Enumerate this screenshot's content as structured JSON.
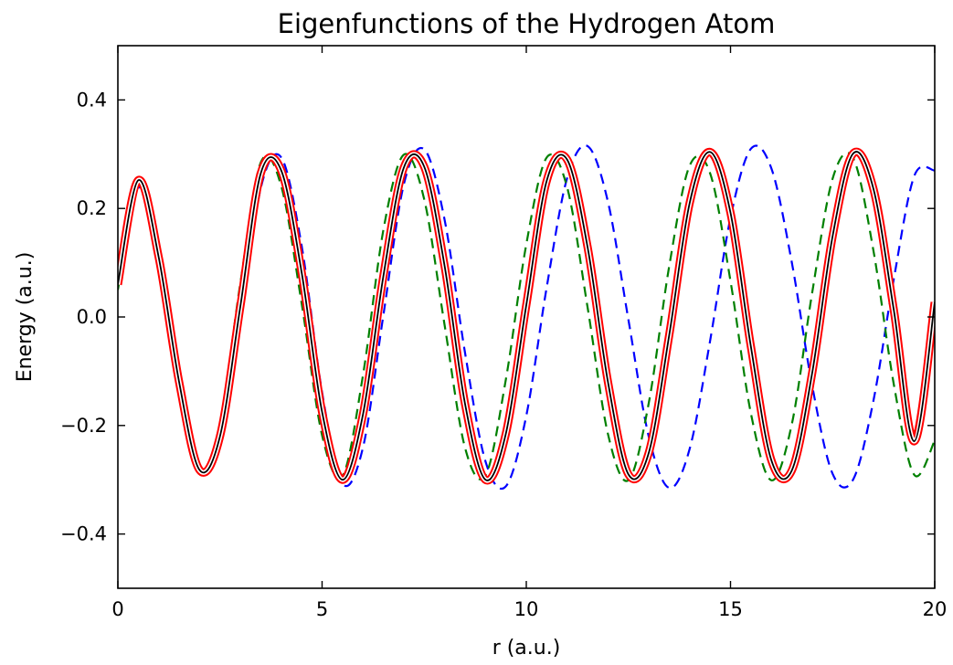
{
  "chart_data": {
    "type": "line",
    "title": "Eigenfunctions of the Hydrogen Atom",
    "xlabel": "r (a.u.)",
    "ylabel": "Energy (a.u.)",
    "xlim": [
      0,
      20
    ],
    "ylim": [
      -0.5,
      0.5
    ],
    "xticks": [
      0,
      5,
      10,
      15,
      20
    ],
    "xtick_labels": [
      "0",
      "5",
      "10",
      "15",
      "20"
    ],
    "yticks": [
      -0.4,
      -0.2,
      0.0,
      0.2,
      0.4
    ],
    "ytick_labels": [
      "−0.4",
      "−0.2",
      "0.0",
      "0.2",
      "0.4"
    ],
    "grid": false,
    "legend": "none",
    "series": [
      {
        "style": "dashed",
        "color": "#0000ff",
        "x": [
          0.0,
          0.5,
          1.0,
          1.5,
          2.0,
          2.5,
          3.0,
          3.5,
          4.0,
          4.5,
          5.0,
          5.5,
          6.0,
          6.5,
          7.0,
          7.5,
          8.0,
          8.5,
          9.0,
          9.5,
          10.0,
          10.5,
          11.0,
          11.5,
          12.0,
          12.5,
          13.0,
          13.5,
          14.0,
          14.5,
          15.0,
          15.5,
          16.0,
          16.5,
          17.0,
          17.5,
          18.0,
          18.5,
          19.0,
          19.5,
          20.0
        ],
        "y": [
          0.06,
          0.238,
          0.123,
          -0.107,
          -0.275,
          -0.241,
          -0.014,
          0.238,
          0.294,
          0.131,
          -0.139,
          -0.307,
          -0.241,
          0.003,
          0.244,
          0.309,
          0.179,
          -0.066,
          -0.266,
          -0.312,
          -0.182,
          0.055,
          0.256,
          0.315,
          0.212,
          -0.005,
          -0.221,
          -0.315,
          -0.243,
          -0.044,
          0.183,
          0.31,
          0.274,
          0.101,
          -0.127,
          -0.289,
          -0.3,
          -0.154,
          0.071,
          0.26,
          0.27
        ]
      },
      {
        "style": "dashed",
        "color": "#008000",
        "x": [
          0.0,
          0.5,
          1.0,
          1.5,
          2.0,
          2.5,
          3.0,
          3.5,
          4.0,
          4.5,
          5.0,
          5.5,
          6.0,
          6.5,
          7.0,
          7.5,
          8.0,
          8.5,
          9.0,
          9.5,
          10.0,
          10.5,
          11.0,
          11.5,
          12.0,
          12.5,
          13.0,
          13.5,
          14.0,
          14.5,
          15.0,
          15.5,
          16.0,
          16.5,
          17.0,
          17.5,
          18.0,
          18.5,
          19.0,
          19.5,
          20.0
        ],
        "y": [
          0.05,
          0.248,
          0.093,
          -0.145,
          -0.285,
          -0.196,
          0.063,
          0.285,
          0.241,
          0.025,
          -0.218,
          -0.293,
          -0.108,
          0.16,
          0.299,
          0.217,
          -0.015,
          -0.241,
          -0.292,
          -0.115,
          0.134,
          0.294,
          0.239,
          0.018,
          -0.216,
          -0.301,
          -0.158,
          0.094,
          0.279,
          0.265,
          0.066,
          -0.178,
          -0.301,
          -0.198,
          0.045,
          0.255,
          0.293,
          0.122,
          -0.125,
          -0.291,
          -0.228
        ]
      },
      {
        "style": "solid",
        "color": "#000000",
        "x": [
          0.0,
          0.5,
          1.0,
          1.5,
          2.0,
          2.5,
          3.0,
          3.5,
          4.0,
          4.5,
          5.0,
          5.5,
          6.0,
          6.5,
          7.0,
          7.5,
          8.0,
          8.5,
          9.0,
          9.5,
          10.0,
          10.5,
          11.0,
          11.5,
          12.0,
          12.5,
          13.0,
          13.5,
          14.0,
          14.5,
          15.0,
          15.5,
          16.0,
          16.5,
          17.0,
          17.5,
          18.0,
          18.5,
          19.0,
          19.5,
          20.0
        ],
        "y": [
          0.06,
          0.252,
          0.11,
          -0.12,
          -0.282,
          -0.22,
          0.02,
          0.265,
          0.27,
          0.082,
          -0.175,
          -0.3,
          -0.18,
          0.075,
          0.275,
          0.277,
          0.094,
          -0.16,
          -0.3,
          -0.215,
          0.022,
          0.251,
          0.29,
          0.129,
          -0.12,
          -0.29,
          -0.25,
          -0.033,
          0.21,
          0.304,
          0.192,
          -0.055,
          -0.264,
          -0.283,
          -0.103,
          0.149,
          0.301,
          0.236,
          0.012,
          -0.229,
          0.027
        ]
      },
      {
        "style": "double",
        "color": "#ff0000",
        "x": [
          0.0,
          0.5,
          1.0,
          1.5,
          2.0,
          2.5,
          3.0,
          3.5,
          4.0,
          4.5,
          5.0,
          5.5,
          6.0,
          6.5,
          7.0,
          7.5,
          8.0,
          8.5,
          9.0,
          9.5,
          10.0,
          10.5,
          11.0,
          11.5,
          12.0,
          12.5,
          13.0,
          13.5,
          14.0,
          14.5,
          15.0,
          15.5,
          16.0,
          16.5,
          17.0,
          17.5,
          18.0,
          18.5,
          19.0,
          19.5,
          20.0
        ],
        "y": [
          0.06,
          0.252,
          0.11,
          -0.12,
          -0.282,
          -0.22,
          0.02,
          0.265,
          0.27,
          0.082,
          -0.175,
          -0.3,
          -0.18,
          0.075,
          0.275,
          0.277,
          0.094,
          -0.16,
          -0.3,
          -0.215,
          0.022,
          0.251,
          0.29,
          0.129,
          -0.12,
          -0.29,
          -0.25,
          -0.033,
          0.21,
          0.304,
          0.192,
          -0.055,
          -0.264,
          -0.283,
          -0.103,
          0.149,
          0.301,
          0.236,
          0.012,
          -0.229,
          0.027
        ]
      }
    ]
  }
}
